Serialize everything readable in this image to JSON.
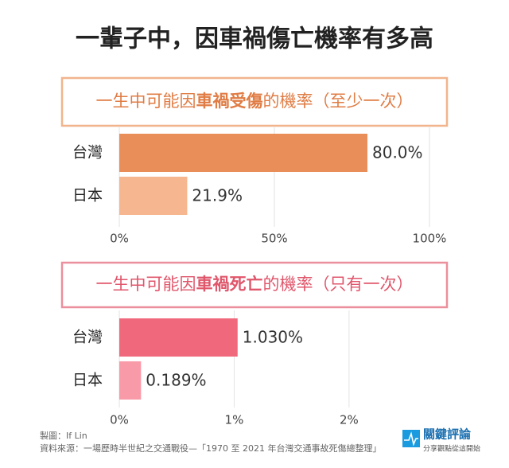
{
  "title": "一輩子中，因車禍傷亡機率有多高",
  "chart_data": [
    {
      "type": "bar",
      "orientation": "horizontal",
      "title_parts": [
        "一生中可能因",
        "車禍受傷",
        "的機率（至少一次）"
      ],
      "categories": [
        "台灣",
        "日本"
      ],
      "values": [
        80.0,
        21.9
      ],
      "value_labels": [
        "80.0%",
        "21.9%"
      ],
      "colors": [
        "#e98e58",
        "#f6b68f"
      ],
      "xlim": [
        0,
        100
      ],
      "xticks": [
        {
          "value": 0,
          "label": "0%"
        },
        {
          "value": 50,
          "label": "50%"
        },
        {
          "value": 100,
          "label": "100%"
        }
      ],
      "grid": true
    },
    {
      "type": "bar",
      "orientation": "horizontal",
      "title_parts": [
        "一生中可能因",
        "車禍死亡",
        "的機率（只有一次）"
      ],
      "categories": [
        "台灣",
        "日本"
      ],
      "values": [
        1.03,
        0.189
      ],
      "value_labels": [
        "1.030%",
        "0.189%"
      ],
      "colors": [
        "#f0687b",
        "#f89aa8"
      ],
      "xlim": [
        0,
        2.7
      ],
      "xticks": [
        {
          "value": 0,
          "label": "0%"
        },
        {
          "value": 1,
          "label": "1%"
        },
        {
          "value": 2,
          "label": "2%"
        }
      ],
      "grid": true
    }
  ],
  "credit": "製圖：If Lin",
  "source": "資料來源：一場歷時半世紀之交通戰役—「1970 至 2021 年台灣交通事故死傷總整理」",
  "logo": {
    "name": "關鍵評論",
    "slogan": "分享觀點從這開始"
  }
}
